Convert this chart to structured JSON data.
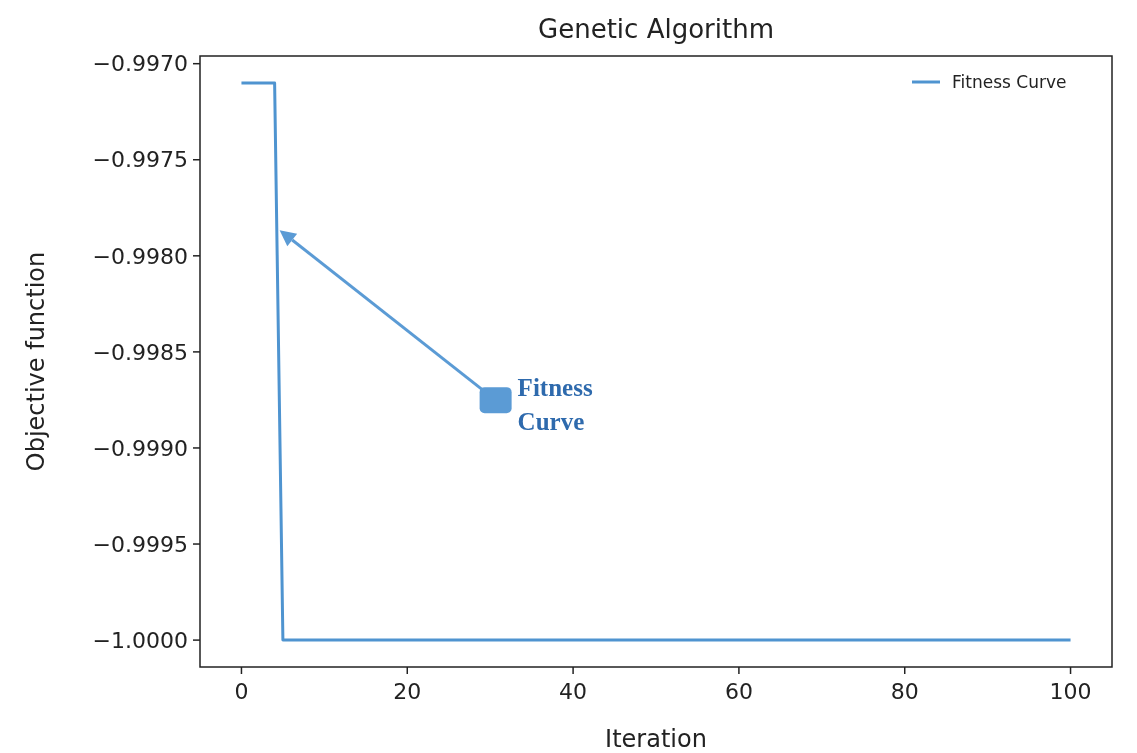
{
  "chart_data": {
    "type": "line",
    "title": "Genetic Algorithm",
    "xlabel": "Iteration",
    "ylabel": "Objective function",
    "x": [
      0,
      4,
      5,
      100
    ],
    "series": [
      {
        "name": "Fitness Curve",
        "color": "#4f94d0",
        "values": [
          -0.9971,
          -0.9971,
          -1.0,
          -1.0
        ]
      }
    ],
    "xlim": [
      -5,
      105
    ],
    "xticks": [
      0,
      20,
      40,
      60,
      80,
      100
    ],
    "ylim": [
      -1.00014,
      -0.99696
    ],
    "yticks": [
      {
        "value": -0.997,
        "label": "−0.9970"
      },
      {
        "value": -0.9975,
        "label": "−0.9975"
      },
      {
        "value": -0.998,
        "label": "−0.9980"
      },
      {
        "value": -0.9985,
        "label": "−0.9985"
      },
      {
        "value": -0.999,
        "label": "−0.9990"
      },
      {
        "value": -0.9995,
        "label": "−0.9995"
      },
      {
        "value": -1.0,
        "label": "−1.0000"
      }
    ],
    "annotations": [
      "Fitness Curve"
    ],
    "legend": "top right",
    "grid": false,
    "marker": "none",
    "line_style": "solid"
  }
}
